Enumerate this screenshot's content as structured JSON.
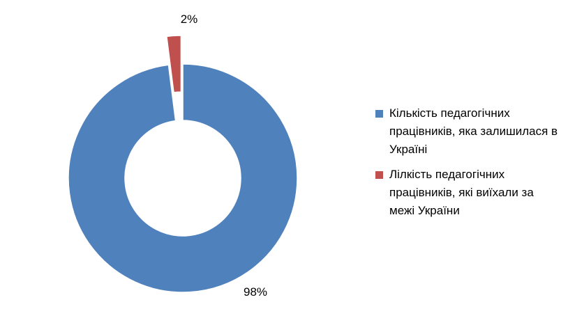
{
  "chart_data": {
    "type": "pie",
    "variant": "doughnut",
    "categories": [
      "Кількість педагогічних працівників, яка залишилася в Україні",
      "Лілкість педагогічних працівників, які виїхали за межі України"
    ],
    "values": [
      98,
      2
    ],
    "value_labels": [
      "98%",
      "2%"
    ],
    "colors": [
      "#4F81BD",
      "#C0504D"
    ],
    "exploded_slice": 1,
    "legend_position": "right"
  }
}
